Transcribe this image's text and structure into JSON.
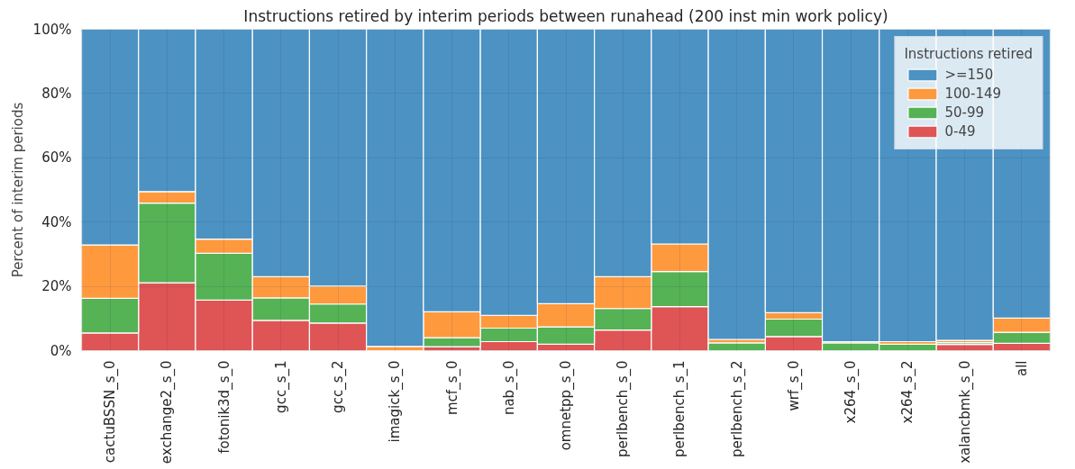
{
  "chart_data": {
    "type": "bar",
    "stacked": true,
    "title": "Instructions retired by interim periods between runahead (200 inst min work policy)",
    "ylabel": "Percent of interim periods",
    "legend_title": "Instructions retired",
    "legend": "top right",
    "grid": true,
    "categories": [
      "cactuBSSN_s_0",
      "exchange2_s_0",
      "fotonik3d_s_0",
      "gcc_s_1",
      "gcc_s_2",
      "imagick_s_0",
      "mcf_s_0",
      "nab_s_0",
      "omnetpp_s_0",
      "perlbench_s_0",
      "perlbench_s_1",
      "perlbench_s_2",
      "wrf_s_0",
      "x264_s_0",
      "x264_s_2",
      "xalancbmk_s_0",
      "all"
    ],
    "ylim": [
      0,
      100
    ],
    "yticks": [
      {
        "value": 0,
        "label": "0%"
      },
      {
        "value": 20,
        "label": "20%"
      },
      {
        "value": 40,
        "label": "40%"
      },
      {
        "value": 60,
        "label": "60%"
      },
      {
        "value": 80,
        "label": "80%"
      },
      {
        "value": 100,
        "label": "100%"
      }
    ],
    "series": [
      {
        "name": "0-49",
        "color": "#df5455",
        "values": [
          5.5,
          21.1,
          15.7,
          9.4,
          8.6,
          null,
          1.2,
          2.8,
          2.0,
          6.4,
          13.7,
          null,
          4.4,
          null,
          null,
          1.9,
          2.3
        ]
      },
      {
        "name": "50-99",
        "color": "#55b255",
        "values": [
          10.8,
          24.8,
          14.6,
          7.0,
          5.9,
          null,
          2.8,
          4.2,
          5.4,
          6.7,
          10.9,
          2.4,
          5.4,
          2.4,
          2.0,
          0.6,
          3.4
        ]
      },
      {
        "name": "100-149",
        "color": "#ff993e",
        "values": [
          16.6,
          3.6,
          4.4,
          6.6,
          5.6,
          1.3,
          8.1,
          4.0,
          7.2,
          9.9,
          8.6,
          1.1,
          2.0,
          0.4,
          0.8,
          0.7,
          4.4
        ]
      },
      {
        "name": ">=150",
        "color": "#4c92c3",
        "values": [
          67.1,
          50.5,
          65.3,
          77.0,
          79.9,
          98.7,
          87.9,
          89.0,
          85.4,
          77.0,
          66.8,
          96.5,
          88.2,
          97.2,
          97.2,
          96.8,
          89.9
        ]
      }
    ]
  }
}
